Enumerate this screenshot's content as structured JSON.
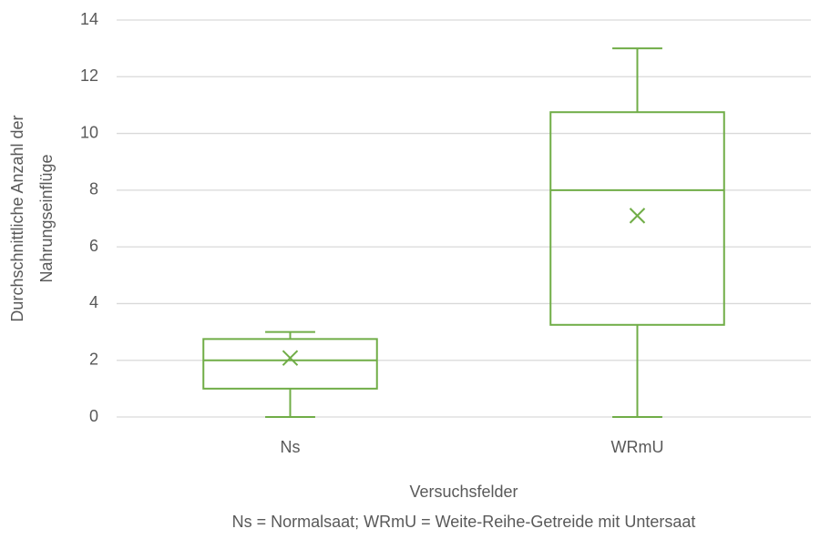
{
  "chart_data": {
    "type": "box",
    "ylabel": [
      "Durchschnittliche Anzahl der",
      "Nahrungseinflüge"
    ],
    "xlabel": "Versuchsfelder",
    "note": "Ns = Normalsaat;  WRmU = Weite-Reihe-Getreide mit Untersaat",
    "categories": [
      "Ns",
      "WRmU"
    ],
    "boxes": [
      {
        "min": 0,
        "q1": 1,
        "median": 2,
        "q3": 2.75,
        "max": 3,
        "mean": 2.08
      },
      {
        "min": 0,
        "q1": 3.25,
        "median": 8,
        "q3": 10.75,
        "max": 13,
        "mean": 7.1
      }
    ],
    "color": "#70ad47",
    "ylim": [
      0,
      14
    ],
    "yticks": [
      0,
      2,
      4,
      6,
      8,
      10,
      12,
      14
    ],
    "grid": true
  }
}
